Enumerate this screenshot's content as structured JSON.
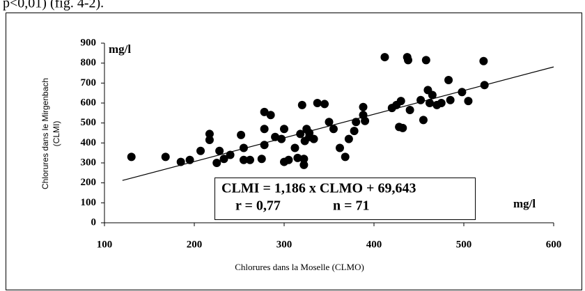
{
  "text_above": "p<0,01) (fig. 4-2).",
  "chart_data": {
    "type": "scatter",
    "ylabel": [
      "Chlorures dans le Mirgenbach",
      "(CLMI)"
    ],
    "xlabel": "Chlorures dans la Moselle (CLMO)",
    "y_unit": "mg/l",
    "x_unit": "mg/l",
    "annotations": [
      "CLMI = 1,186 x CLMO + 69,643",
      "r = 0,77",
      "n = 71"
    ],
    "color": "#000000",
    "xlim": [
      100,
      600
    ],
    "ylim": [
      0,
      900
    ],
    "xticks": [
      100,
      200,
      300,
      400,
      500,
      600
    ],
    "yticks": [
      0,
      100,
      200,
      300,
      400,
      500,
      600,
      700,
      800,
      900
    ],
    "trendline": {
      "x": [
        120,
        600
      ],
      "y": [
        212,
        781
      ]
    },
    "x": [
      130,
      168,
      185,
      195,
      207,
      217,
      217,
      225,
      228,
      233,
      240,
      252,
      255,
      255,
      262,
      275,
      278,
      278,
      278,
      285,
      290,
      297,
      300,
      300,
      305,
      312,
      315,
      318,
      320,
      322,
      322,
      323,
      325,
      328,
      328,
      333,
      337,
      345,
      350,
      355,
      362,
      368,
      372,
      378,
      380,
      388,
      388,
      390,
      412,
      420,
      425,
      428,
      430,
      432,
      437,
      438,
      440,
      452,
      455,
      458,
      460,
      462,
      465,
      470,
      475,
      483,
      485,
      498,
      505,
      522,
      523
    ],
    "values": [
      330,
      330,
      305,
      315,
      360,
      445,
      415,
      300,
      360,
      320,
      340,
      440,
      375,
      315,
      315,
      320,
      555,
      470,
      390,
      540,
      430,
      420,
      470,
      305,
      315,
      375,
      325,
      445,
      590,
      290,
      320,
      410,
      470,
      450,
      430,
      420,
      600,
      595,
      505,
      470,
      375,
      330,
      420,
      460,
      505,
      580,
      540,
      510,
      830,
      575,
      590,
      480,
      610,
      475,
      830,
      815,
      565,
      615,
      515,
      815,
      665,
      600,
      640,
      590,
      600,
      715,
      615,
      655,
      610,
      810,
      690
    ]
  }
}
